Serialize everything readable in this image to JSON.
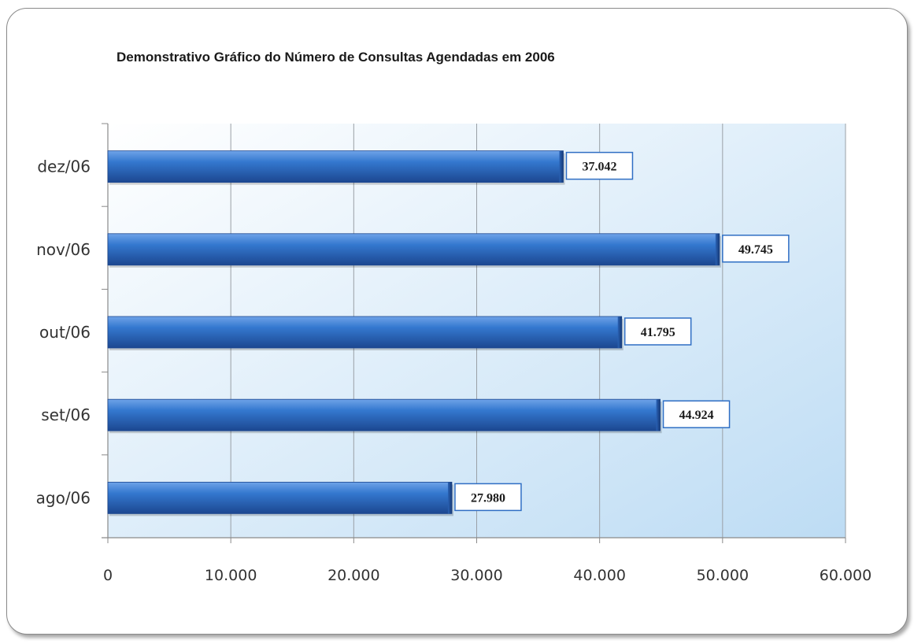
{
  "chart_data": {
    "type": "bar",
    "orientation": "horizontal",
    "title": "Demonstrativo Gráfico do Número de Consultas Agendadas em 2006",
    "categories": [
      "dez/06",
      "nov/06",
      "out/06",
      "set/06",
      "ago/06"
    ],
    "values": [
      37042,
      49745,
      41795,
      44924,
      27980
    ],
    "value_labels": [
      "37.042",
      "49.745",
      "41.795",
      "44.924",
      "27.980"
    ],
    "xlim": [
      0,
      60000
    ],
    "x_ticks": [
      0,
      10000,
      20000,
      30000,
      40000,
      50000,
      60000
    ],
    "x_tick_labels": [
      "0",
      "10.000",
      "20.000",
      "30.000",
      "40.000",
      "50.000",
      "60.000"
    ],
    "xlabel": "",
    "ylabel": "",
    "grid": "vertical",
    "legend": "none",
    "colors": {
      "bar": "#2f6ec4",
      "bar_dark": "#1c4790",
      "plot_bg_start": "#ffffff",
      "plot_bg_end": "#bddcf4",
      "label_border": "#2f6ec4"
    }
  }
}
